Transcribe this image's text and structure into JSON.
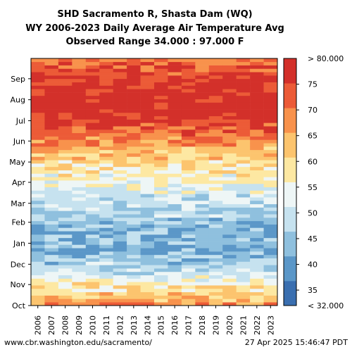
{
  "title_lines": [
    "SHD Sacramento R, Shasta Dam (WQ)",
    "WY 2006-2023 Daily Average Air Temperature Avg",
    "Observed Range 34.000 : 97.000 F"
  ],
  "footer": {
    "left": "www.cbr.washington.edu/sacramento/",
    "right": "27 Apr 2025 15:46:47 PDT"
  },
  "colors": {
    "palette": [
      "#3a6fb0",
      "#5b97c8",
      "#8fc0de",
      "#c6e2ef",
      "#eef6f6",
      "#fde8a2",
      "#fcc46e",
      "#f8924c",
      "#ec5b37",
      "#d3302a"
    ],
    "missing": "#ffffff",
    "frame": "#000000"
  },
  "chart_data": {
    "type": "heatmap",
    "title": "SHD Sacramento R, Shasta Dam (WQ)\nWY 2006-2023 Daily Average Air Temperature Avg\nObserved Range 34.000 : 97.000 F",
    "x": [
      "2006",
      "2007",
      "2008",
      "2009",
      "2010",
      "2011",
      "2012",
      "2013",
      "2014",
      "2015",
      "2016",
      "2017",
      "2018",
      "2019",
      "2020",
      "2021",
      "2022",
      "2023"
    ],
    "y": [
      "Oct",
      "Nov",
      "Dec",
      "Jan",
      "Feb",
      "Mar",
      "Apr",
      "May",
      "Jun",
      "Jul",
      "Aug",
      "Sep"
    ],
    "colorbar": {
      "range": [
        32,
        80
      ],
      "ticks": [
        "35",
        "40",
        "45",
        "50",
        "55",
        "60",
        "65",
        "70",
        "75"
      ],
      "top_label": "> 80.000",
      "bottom_label": "< 32.000"
    },
    "monthly_mean_temperature_F": [
      62,
      51,
      43,
      43,
      47,
      52,
      57,
      64,
      73,
      80,
      79,
      74
    ],
    "grid": false,
    "colorbar_position": "right"
  }
}
